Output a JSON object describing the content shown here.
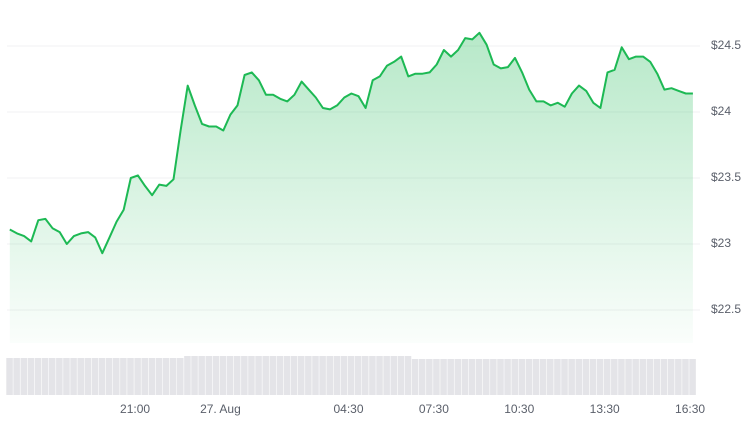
{
  "chart_data": {
    "type": "area",
    "color": "#1db954",
    "x": [
      16.6,
      16.85,
      17.1,
      17.35,
      17.6,
      17.85,
      18.1,
      18.35,
      18.6,
      18.85,
      19.1,
      19.35,
      19.6,
      19.85,
      20.1,
      20.35,
      20.6,
      20.85,
      21.1,
      21.35,
      21.6,
      21.85,
      22.1,
      22.35,
      22.6,
      22.85,
      23.1,
      23.35,
      23.6,
      23.85,
      24.1,
      24.35,
      24.6,
      24.85,
      25.1,
      25.35,
      25.6,
      25.85,
      26.1,
      26.35,
      26.6,
      26.85,
      27.1,
      27.35,
      27.6,
      27.85,
      28.1,
      28.35,
      28.6,
      28.85,
      29.1,
      29.35,
      29.6,
      29.85,
      30.1,
      30.35,
      30.6,
      30.85,
      31.1,
      31.35,
      31.6,
      31.85,
      32.1,
      32.35,
      32.6,
      32.85,
      33.1,
      33.35,
      33.6,
      33.85,
      34.1,
      34.35,
      34.6,
      34.85,
      35.1,
      35.35,
      35.6,
      35.85,
      36.1,
      36.35,
      36.6,
      36.85,
      37.1,
      37.35,
      37.6,
      37.85,
      38.1,
      38.35,
      38.6,
      38.85,
      39.1,
      39.35,
      39.6,
      39.85,
      40.1,
      40.35,
      40.6
    ],
    "values": [
      23.11,
      23.08,
      23.06,
      23.02,
      23.18,
      23.19,
      23.12,
      23.09,
      23.0,
      23.06,
      23.08,
      23.09,
      23.05,
      22.93,
      23.05,
      23.17,
      23.26,
      23.5,
      23.52,
      23.44,
      23.37,
      23.45,
      23.44,
      23.49,
      23.86,
      24.2,
      24.05,
      23.91,
      23.89,
      23.89,
      23.86,
      23.98,
      24.05,
      24.28,
      24.3,
      24.24,
      24.13,
      24.13,
      24.1,
      24.08,
      24.13,
      24.23,
      24.17,
      24.11,
      24.03,
      24.02,
      24.05,
      24.11,
      24.14,
      24.12,
      24.03,
      24.24,
      24.27,
      24.35,
      24.38,
      24.42,
      24.27,
      24.29,
      24.29,
      24.3,
      24.36,
      24.47,
      24.42,
      24.47,
      24.56,
      24.55,
      24.6,
      24.51,
      24.36,
      24.33,
      24.34,
      24.41,
      24.3,
      24.17,
      24.08,
      24.08,
      24.05,
      24.07,
      24.04,
      24.14,
      24.2,
      24.16,
      24.07,
      24.03,
      24.3,
      24.32,
      24.49,
      24.4,
      24.42,
      24.42,
      24.38,
      24.29,
      24.17,
      24.18,
      24.16,
      24.14,
      24.14
    ],
    "volume": {
      "color": "#e4e4e8",
      "ylim": [
        0,
        40
      ],
      "values": [
        37,
        37,
        37,
        37,
        37,
        37,
        37,
        37,
        37,
        37,
        37,
        37,
        37,
        37,
        37,
        37,
        37,
        37,
        37,
        37,
        37,
        37,
        37,
        37,
        37,
        39,
        39,
        39,
        39,
        39,
        39,
        39,
        39,
        39,
        39,
        39,
        39,
        39,
        39,
        39,
        39,
        39,
        39,
        39,
        39,
        39,
        39,
        39,
        39,
        39,
        39,
        39,
        39,
        39,
        39,
        39,
        39,
        36,
        36,
        36,
        36,
        36,
        36,
        36,
        36,
        36,
        36,
        36,
        36,
        36,
        36,
        36,
        36,
        36,
        36,
        36,
        36,
        36,
        36,
        36,
        36,
        36,
        36,
        36,
        36,
        36,
        36,
        36,
        36,
        36,
        36,
        36,
        36,
        36,
        36,
        36,
        36
      ]
    },
    "xlim": [
      16.5,
      40.85
    ],
    "ylim": [
      22.25,
      24.75
    ],
    "xticks": [
      {
        "value": 21,
        "label": "21:00"
      },
      {
        "value": 24,
        "label": "27. Aug"
      },
      {
        "value": 28.5,
        "label": "04:30"
      },
      {
        "value": 31.5,
        "label": "07:30"
      },
      {
        "value": 34.5,
        "label": "10:30"
      },
      {
        "value": 37.5,
        "label": "13:30"
      },
      {
        "value": 40.5,
        "label": "16:30"
      }
    ],
    "yticks": [
      {
        "value": 22.5,
        "label": "$22.5"
      },
      {
        "value": 23,
        "label": "$23"
      },
      {
        "value": 23.5,
        "label": "$23.5"
      },
      {
        "value": 24,
        "label": "$24"
      },
      {
        "value": 24.5,
        "label": "$24.5"
      }
    ],
    "grid": true
  }
}
